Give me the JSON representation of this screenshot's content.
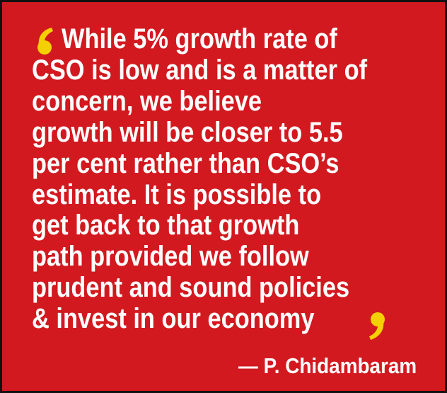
{
  "quote": {
    "lines": [
      "While 5% growth rate of",
      "CSO is low and is a matter of",
      "concern, we believe",
      "growth will be closer to 5.5",
      "per cent rather than CSO’s",
      "estimate. It is possible to",
      "get back to that growth",
      "path provided we follow",
      "prudent and sound policies",
      "& invest in our economy"
    ],
    "attribution": "— P. Chidambaram"
  }
}
